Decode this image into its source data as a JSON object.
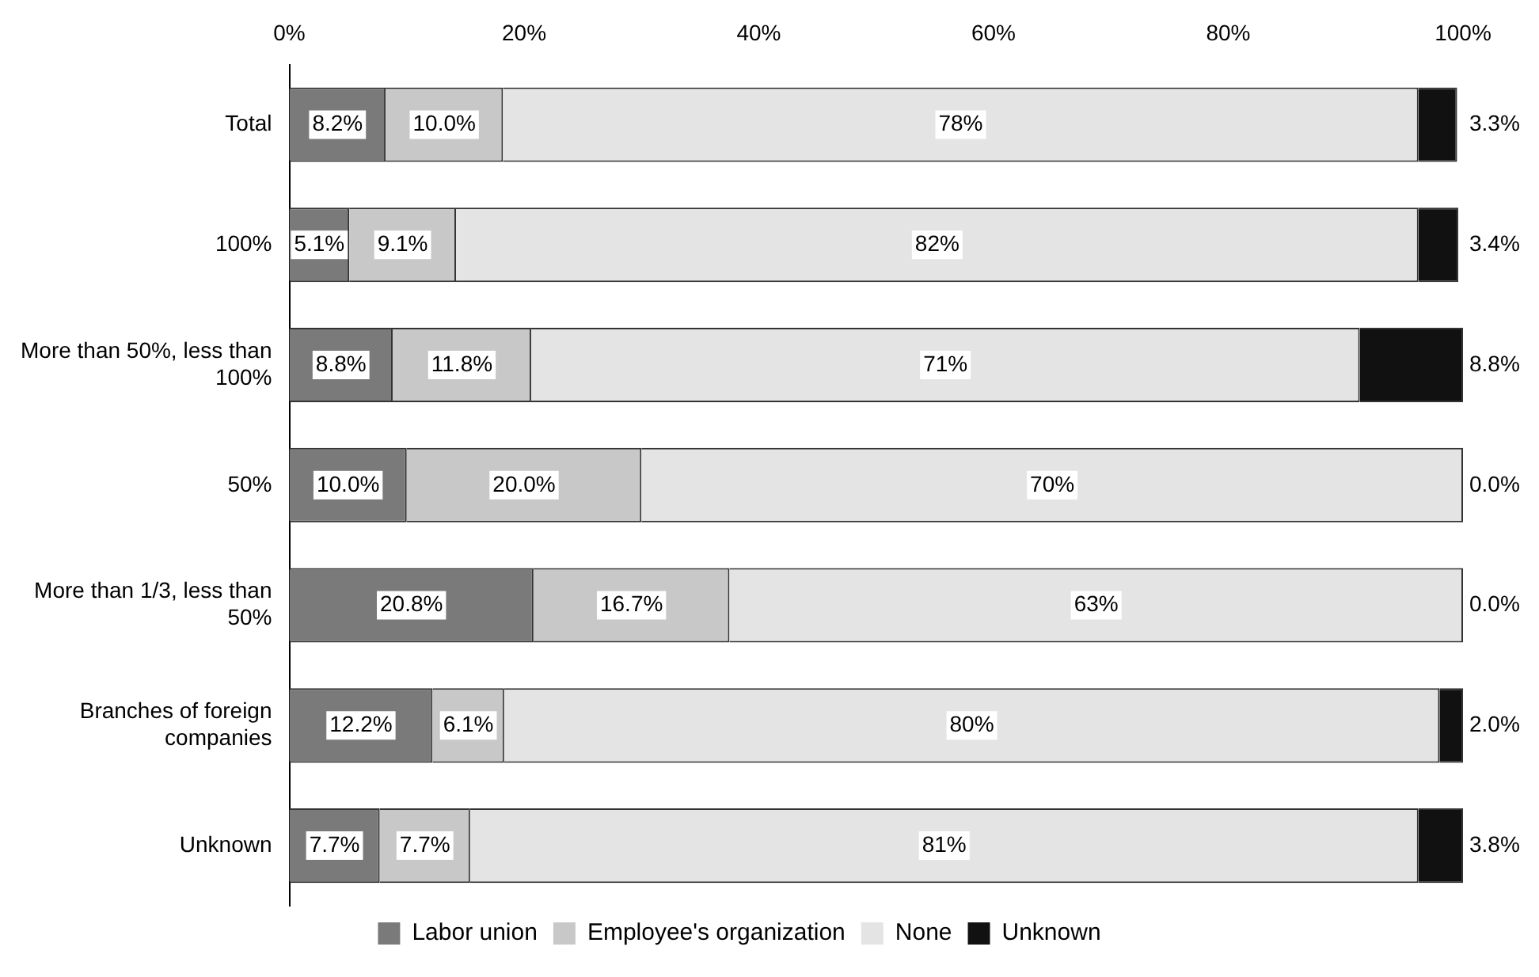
{
  "chart_data": {
    "type": "bar",
    "orientation": "horizontal",
    "stacked": true,
    "grid": false,
    "legend": "bottom",
    "categories": [
      "Total",
      "100%",
      "More than 50%, less than 100%",
      "50%",
      "More than 1/3, less than 50%",
      "Branches of foreign companies",
      "Unknown"
    ],
    "xlim": [
      0,
      100
    ],
    "xticks": [
      {
        "value": 0,
        "label": "0%"
      },
      {
        "value": 20,
        "label": "20%"
      },
      {
        "value": 40,
        "label": "40%"
      },
      {
        "value": 60,
        "label": "60%"
      },
      {
        "value": 80,
        "label": "80%"
      },
      {
        "value": 100,
        "label": "100%"
      }
    ],
    "series": [
      {
        "name": "Labor union",
        "color": "#7a7a7a",
        "values": [
          8.2,
          5.1,
          8.8,
          10.0,
          20.8,
          12.2,
          7.7
        ],
        "value_labels": [
          "8.2%",
          "5.1%",
          "8.8%",
          "10.0%",
          "20.8%",
          "12.2%",
          "7.7%"
        ]
      },
      {
        "name": "Employee's organization",
        "color": "#c8c8c8",
        "values": [
          10.0,
          9.1,
          11.8,
          20.0,
          16.7,
          6.1,
          7.7
        ],
        "value_labels": [
          "10.0%",
          "9.1%",
          "11.8%",
          "20.0%",
          "16.7%",
          "6.1%",
          "7.7%"
        ]
      },
      {
        "name": "None",
        "color": "#e4e4e4",
        "values": [
          78,
          82,
          70.6,
          70,
          62.5,
          79.7,
          80.8
        ],
        "value_labels": [
          "78%",
          "82%",
          "71%",
          "70%",
          "63%",
          "80%",
          "81%"
        ]
      },
      {
        "name": "Unknown",
        "color": "#111111",
        "values": [
          3.3,
          3.4,
          8.8,
          0.0,
          0.0,
          2.0,
          3.8
        ],
        "value_labels": [
          "3.3%",
          "3.4%",
          "8.8%",
          "0.0%",
          "0.0%",
          "2.0%",
          "3.8%"
        ]
      }
    ]
  }
}
